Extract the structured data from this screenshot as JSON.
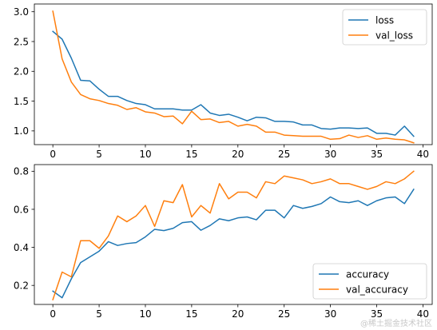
{
  "watermark": "@稀土掘金技术社区",
  "chart_data": [
    {
      "type": "line",
      "x": [
        0,
        1,
        2,
        3,
        4,
        5,
        6,
        7,
        8,
        9,
        10,
        11,
        12,
        13,
        14,
        15,
        16,
        17,
        18,
        19,
        20,
        21,
        22,
        23,
        24,
        25,
        26,
        27,
        28,
        29,
        30,
        31,
        32,
        33,
        34,
        35,
        36,
        37,
        38,
        39
      ],
      "xlim": [
        -2,
        41
      ],
      "ylim": [
        0.77,
        3.13
      ],
      "xticks": [
        0,
        5,
        10,
        15,
        20,
        25,
        30,
        35,
        40
      ],
      "yticks": [
        1.0,
        1.5,
        2.0,
        2.5,
        3.0
      ],
      "ytick_labels": [
        "1.0",
        "1.5",
        "2.0",
        "2.5",
        "3.0"
      ],
      "legend_position": "top-right",
      "series": [
        {
          "name": "loss",
          "color": "#1f77b4",
          "values": [
            2.67,
            2.54,
            2.22,
            1.85,
            1.84,
            1.7,
            1.58,
            1.58,
            1.51,
            1.46,
            1.44,
            1.37,
            1.37,
            1.37,
            1.35,
            1.35,
            1.44,
            1.3,
            1.26,
            1.28,
            1.23,
            1.17,
            1.23,
            1.22,
            1.16,
            1.16,
            1.15,
            1.1,
            1.1,
            1.04,
            1.03,
            1.05,
            1.05,
            1.04,
            1.05,
            0.96,
            0.96,
            0.93,
            1.08,
            0.91
          ]
        },
        {
          "name": "val_loss",
          "color": "#ff7f0e",
          "values": [
            3.01,
            2.21,
            1.82,
            1.61,
            1.54,
            1.51,
            1.46,
            1.43,
            1.36,
            1.39,
            1.32,
            1.3,
            1.24,
            1.25,
            1.12,
            1.33,
            1.19,
            1.2,
            1.14,
            1.16,
            1.08,
            1.11,
            1.08,
            0.98,
            0.98,
            0.93,
            0.92,
            0.91,
            0.91,
            0.91,
            0.86,
            0.87,
            0.93,
            0.89,
            0.92,
            0.86,
            0.88,
            0.86,
            0.85,
            0.8
          ]
        }
      ]
    },
    {
      "type": "line",
      "x": [
        0,
        1,
        2,
        3,
        4,
        5,
        6,
        7,
        8,
        9,
        10,
        11,
        12,
        13,
        14,
        15,
        16,
        17,
        18,
        19,
        20,
        21,
        22,
        23,
        24,
        25,
        26,
        27,
        28,
        29,
        30,
        31,
        32,
        33,
        34,
        35,
        36,
        37,
        38,
        39
      ],
      "xlim": [
        -2,
        41
      ],
      "ylim": [
        0.1,
        0.835
      ],
      "xticks": [
        0,
        5,
        10,
        15,
        20,
        25,
        30,
        35,
        40
      ],
      "yticks": [
        0.2,
        0.4,
        0.6,
        0.8
      ],
      "ytick_labels": [
        "0.2",
        "0.4",
        "0.6",
        "0.8"
      ],
      "legend_position": "bottom-right",
      "series": [
        {
          "name": "accuracy",
          "color": "#1f77b4",
          "values": [
            0.17,
            0.135,
            0.235,
            0.32,
            0.35,
            0.38,
            0.43,
            0.41,
            0.42,
            0.425,
            0.455,
            0.495,
            0.488,
            0.5,
            0.53,
            0.535,
            0.49,
            0.515,
            0.55,
            0.54,
            0.555,
            0.56,
            0.545,
            0.595,
            0.595,
            0.555,
            0.62,
            0.605,
            0.615,
            0.63,
            0.665,
            0.64,
            0.635,
            0.645,
            0.62,
            0.645,
            0.66,
            0.665,
            0.63,
            0.705
          ]
        },
        {
          "name": "val_accuracy",
          "color": "#ff7f0e",
          "values": [
            0.125,
            0.27,
            0.245,
            0.435,
            0.435,
            0.395,
            0.46,
            0.565,
            0.535,
            0.565,
            0.62,
            0.51,
            0.645,
            0.635,
            0.73,
            0.56,
            0.62,
            0.58,
            0.735,
            0.655,
            0.69,
            0.69,
            0.66,
            0.745,
            0.735,
            0.775,
            0.765,
            0.755,
            0.735,
            0.745,
            0.76,
            0.735,
            0.735,
            0.72,
            0.705,
            0.72,
            0.745,
            0.735,
            0.76,
            0.8
          ]
        }
      ]
    }
  ]
}
